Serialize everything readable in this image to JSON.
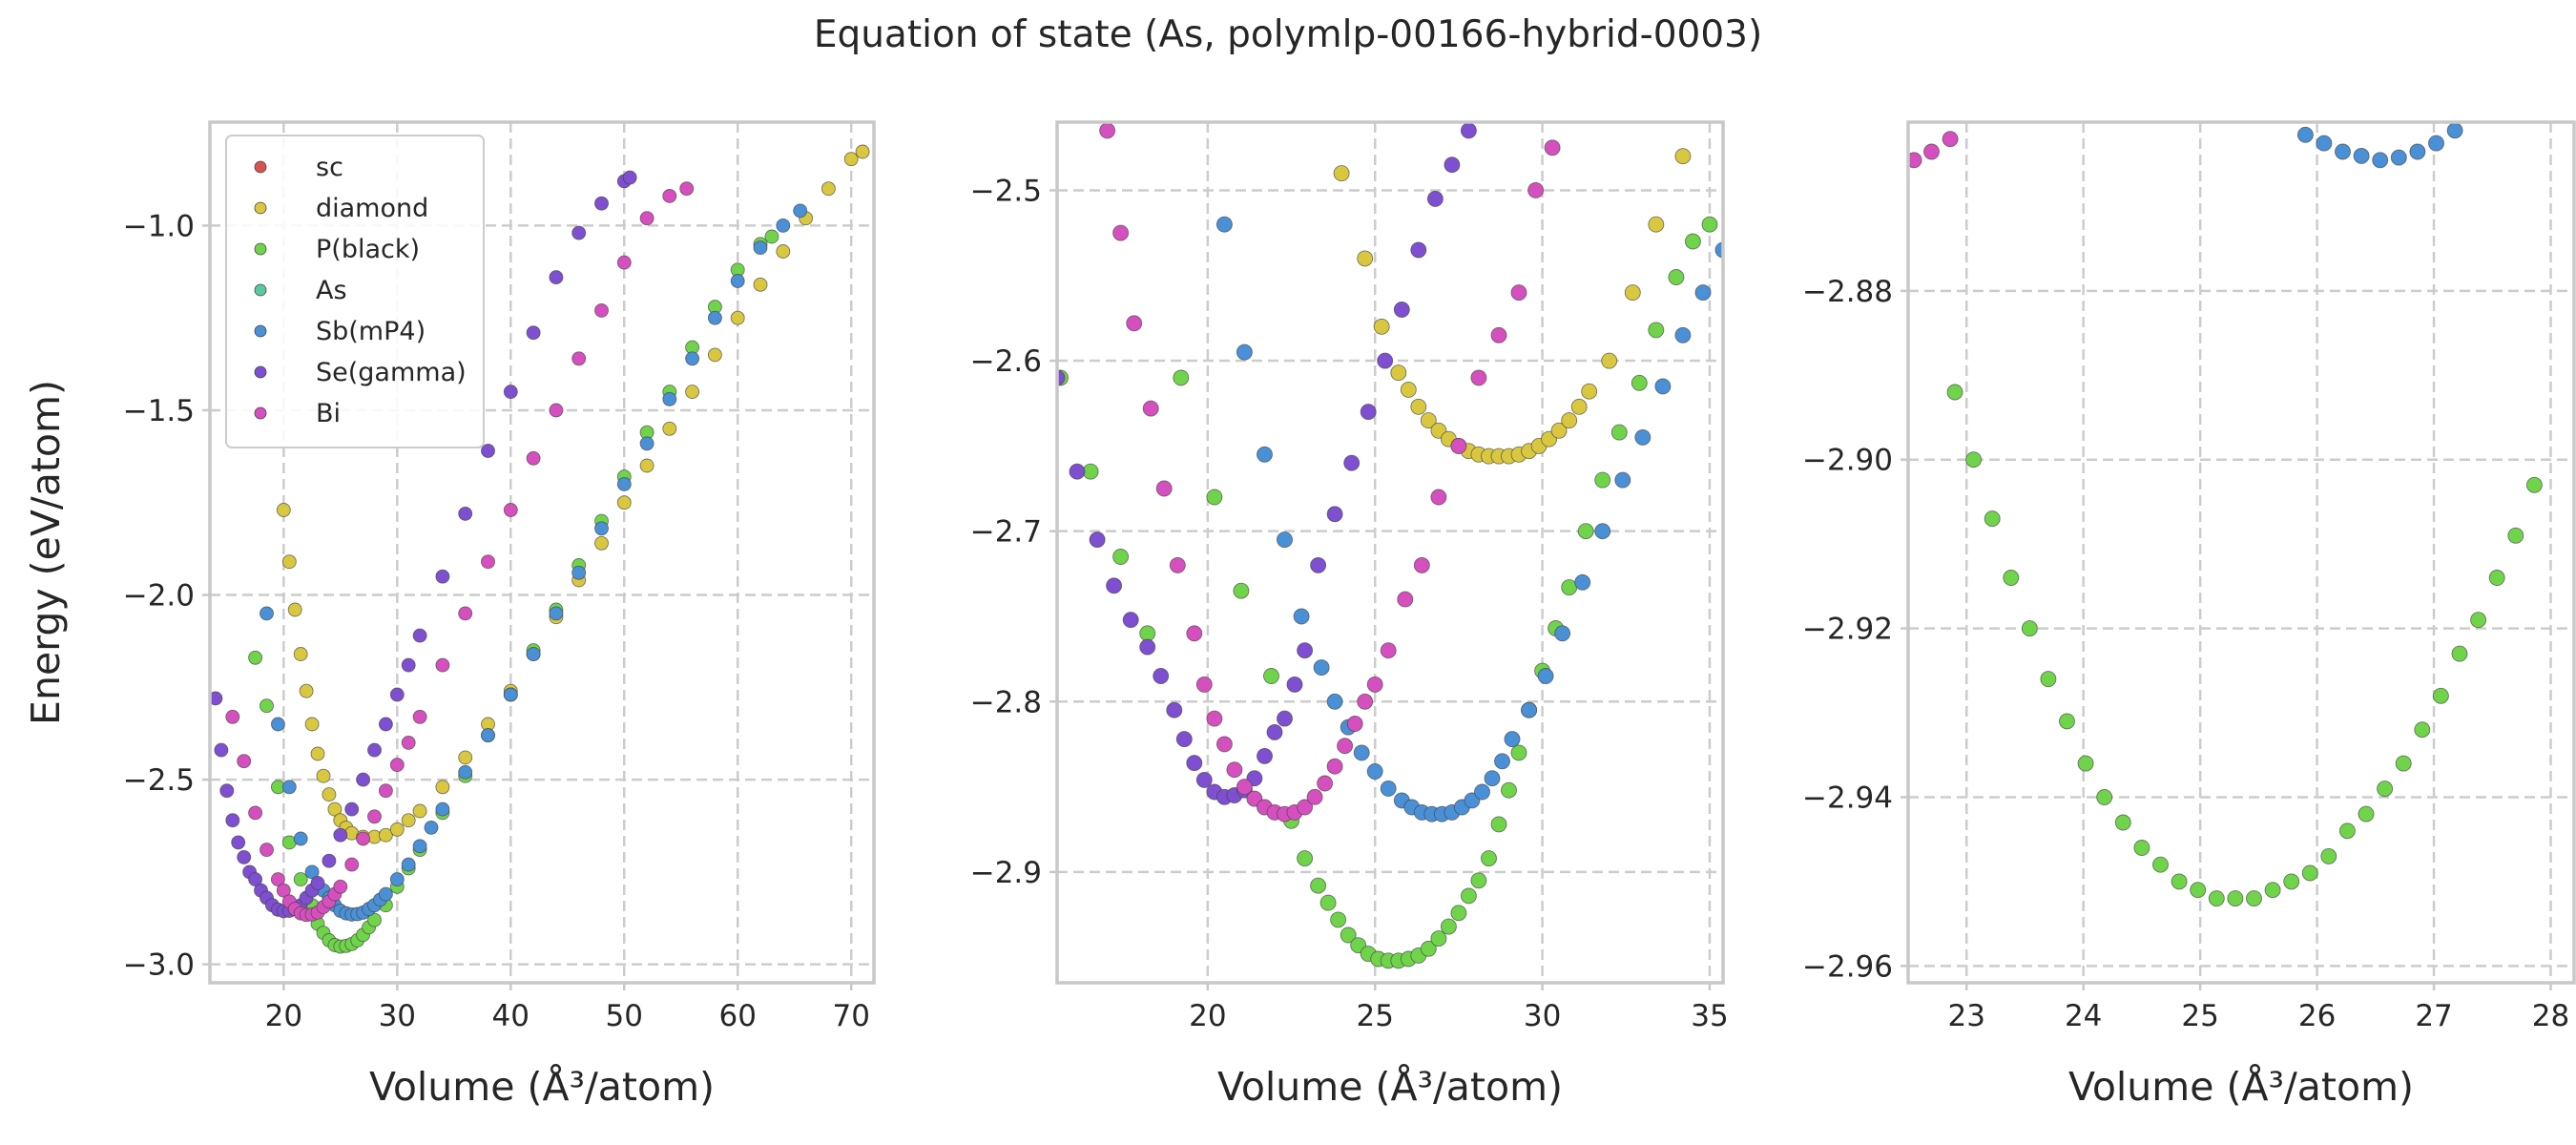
{
  "figure_title": "Equation of state (As, polymlp-00166-hybrid-0003)",
  "colors": {
    "sc": "#d6544d",
    "diamond": "#d9c83f",
    "P(black)": "#6fd44a",
    "As": "#59c99d",
    "Sb(mP4)": "#4a90d6",
    "Se(gamma)": "#7e4fd0",
    "Bi": "#d64fbe"
  },
  "chart_data": [
    {
      "type": "scatter",
      "title": "",
      "xlabel": "Volume (Å³/atom)",
      "ylabel": "Energy (eV/atom)",
      "xlim": [
        13.5,
        72
      ],
      "ylim": [
        -3.05,
        -0.72
      ],
      "xticks": [
        20,
        30,
        40,
        50,
        60,
        70
      ],
      "yticks": [
        -3.0,
        -2.5,
        -2.0,
        -1.5,
        -1.0
      ],
      "ytick_labels": [
        "−3.0",
        "−2.5",
        "−2.0",
        "−1.5",
        "−1.0"
      ],
      "grid": true,
      "legend": {
        "placement": "top-left",
        "entries": [
          "sc",
          "diamond",
          "P(black)",
          "As",
          "Sb(mP4)",
          "Se(gamma)",
          "Bi"
        ]
      },
      "series": [
        {
          "name": "sc",
          "x": [],
          "y": []
        },
        {
          "name": "diamond",
          "x": [
            20.0,
            20.5,
            21.0,
            21.5,
            22.0,
            22.5,
            23.0,
            23.5,
            24.0,
            24.5,
            25.0,
            25.5,
            26.0,
            27.0,
            28.0,
            29.0,
            30.0,
            31.0,
            32.0,
            34.0,
            36.0,
            38.0,
            40.0,
            42.0,
            44.0,
            46.0,
            48.0,
            50.0,
            52.0,
            54.0,
            56.0,
            58.0,
            60.0,
            62.0,
            64.0,
            66.0,
            68.0,
            70.0,
            71.0
          ],
          "y": [
            -1.77,
            -1.91,
            -2.04,
            -2.16,
            -2.26,
            -2.35,
            -2.43,
            -2.49,
            -2.54,
            -2.58,
            -2.61,
            -2.63,
            -2.645,
            -2.655,
            -2.655,
            -2.65,
            -2.635,
            -2.61,
            -2.585,
            -2.52,
            -2.44,
            -2.35,
            -2.26,
            -2.16,
            -2.06,
            -1.96,
            -1.86,
            -1.75,
            -1.65,
            -1.55,
            -1.45,
            -1.35,
            -1.25,
            -1.16,
            -1.07,
            -0.98,
            -0.9,
            -0.82,
            -0.8
          ]
        },
        {
          "name": "P(black)",
          "x": [
            17.5,
            18.5,
            19.5,
            20.5,
            21.5,
            22.5,
            23.0,
            23.5,
            24.0,
            24.5,
            25.0,
            25.5,
            26.0,
            26.5,
            27.0,
            27.5,
            28.0,
            29.0,
            30.0,
            31.0,
            32.0,
            34.0,
            36.0,
            38.0,
            40.0,
            42.0,
            44.0,
            46.0,
            48.0,
            50.0,
            52.0,
            54.0,
            56.0,
            58.0,
            60.0,
            62.0,
            63.0
          ],
          "y": [
            -2.17,
            -2.3,
            -2.52,
            -2.67,
            -2.77,
            -2.84,
            -2.89,
            -2.915,
            -2.935,
            -2.948,
            -2.952,
            -2.95,
            -2.945,
            -2.935,
            -2.92,
            -2.9,
            -2.88,
            -2.84,
            -2.79,
            -2.74,
            -2.69,
            -2.59,
            -2.49,
            -2.38,
            -2.27,
            -2.15,
            -2.04,
            -1.92,
            -1.8,
            -1.68,
            -1.56,
            -1.45,
            -1.33,
            -1.22,
            -1.12,
            -1.05,
            -1.03
          ]
        },
        {
          "name": "As",
          "x": [],
          "y": []
        },
        {
          "name": "Sb(mP4)",
          "x": [
            18.5,
            19.5,
            20.5,
            21.5,
            22.5,
            23.5,
            24.0,
            24.5,
            25.0,
            25.5,
            26.0,
            26.5,
            27.0,
            27.5,
            28.0,
            28.5,
            29.0,
            30.0,
            31.0,
            32.0,
            33.0,
            34.0,
            36.0,
            38.0,
            40.0,
            42.0,
            44.0,
            46.0,
            48.0,
            50.0,
            52.0,
            54.0,
            56.0,
            58.0,
            60.0,
            62.0,
            64.0,
            65.5
          ],
          "y": [
            -2.05,
            -2.35,
            -2.52,
            -2.66,
            -2.75,
            -2.8,
            -2.82,
            -2.84,
            -2.855,
            -2.862,
            -2.865,
            -2.864,
            -2.86,
            -2.85,
            -2.84,
            -2.825,
            -2.81,
            -2.77,
            -2.73,
            -2.68,
            -2.63,
            -2.58,
            -2.48,
            -2.38,
            -2.27,
            -2.16,
            -2.05,
            -1.94,
            -1.82,
            -1.7,
            -1.59,
            -1.47,
            -1.36,
            -1.25,
            -1.15,
            -1.06,
            -1.0,
            -0.96
          ]
        },
        {
          "name": "Se(gamma)",
          "x": [
            14.0,
            14.5,
            15.0,
            15.5,
            16.0,
            16.5,
            17.0,
            17.5,
            18.0,
            18.5,
            19.0,
            19.5,
            20.0,
            20.5,
            21.0,
            21.5,
            22.0,
            22.5,
            23.0,
            24.0,
            25.0,
            26.0,
            27.0,
            28.0,
            29.0,
            30.0,
            31.0,
            32.0,
            34.0,
            36.0,
            38.0,
            40.0,
            42.0,
            44.0,
            46.0,
            48.0,
            50.0,
            50.5
          ],
          "y": [
            -2.28,
            -2.42,
            -2.53,
            -2.61,
            -2.67,
            -2.71,
            -2.75,
            -2.77,
            -2.8,
            -2.82,
            -2.84,
            -2.852,
            -2.856,
            -2.855,
            -2.85,
            -2.84,
            -2.82,
            -2.8,
            -2.78,
            -2.72,
            -2.65,
            -2.58,
            -2.5,
            -2.42,
            -2.35,
            -2.27,
            -2.19,
            -2.11,
            -1.95,
            -1.78,
            -1.61,
            -1.45,
            -1.29,
            -1.14,
            -1.02,
            -0.94,
            -0.88,
            -0.87
          ]
        },
        {
          "name": "Bi",
          "x": [
            15.5,
            16.5,
            17.5,
            18.5,
            19.5,
            20.0,
            20.5,
            21.0,
            21.5,
            22.0,
            22.5,
            23.0,
            23.5,
            24.0,
            24.5,
            25.0,
            26.0,
            27.0,
            28.0,
            29.0,
            30.0,
            31.0,
            32.0,
            34.0,
            36.0,
            38.0,
            40.0,
            42.0,
            44.0,
            46.0,
            48.0,
            50.0,
            52.0,
            54.0,
            55.5
          ],
          "y": [
            -2.33,
            -2.45,
            -2.59,
            -2.69,
            -2.77,
            -2.8,
            -2.83,
            -2.85,
            -2.862,
            -2.866,
            -2.865,
            -2.86,
            -2.845,
            -2.83,
            -2.81,
            -2.79,
            -2.73,
            -2.66,
            -2.6,
            -2.53,
            -2.46,
            -2.4,
            -2.33,
            -2.19,
            -2.05,
            -1.91,
            -1.77,
            -1.63,
            -1.5,
            -1.36,
            -1.23,
            -1.1,
            -0.98,
            -0.92,
            -0.9
          ]
        }
      ]
    },
    {
      "type": "scatter",
      "title": "",
      "xlabel": "Volume (Å³/atom)",
      "ylabel": "",
      "xlim": [
        15.5,
        35.4
      ],
      "ylim": [
        -2.965,
        -2.46
      ],
      "xticks": [
        20,
        25,
        30,
        35
      ],
      "yticks": [
        -2.9,
        -2.8,
        -2.7,
        -2.6,
        -2.5
      ],
      "ytick_labels": [
        "−2.9",
        "−2.8",
        "−2.7",
        "−2.6",
        "−2.5"
      ],
      "grid": true,
      "series": [
        {
          "name": "diamond",
          "x": [
            24.0,
            24.7,
            25.2,
            25.7,
            26.0,
            26.3,
            26.6,
            26.9,
            27.2,
            27.5,
            27.8,
            28.1,
            28.4,
            28.7,
            29.0,
            29.3,
            29.6,
            29.9,
            30.2,
            30.5,
            30.8,
            31.1,
            31.4,
            32.0,
            32.7,
            33.4,
            34.2,
            34.9
          ],
          "y": [
            -2.49,
            -2.54,
            -2.58,
            -2.607,
            -2.617,
            -2.627,
            -2.635,
            -2.641,
            -2.646,
            -2.65,
            -2.653,
            -2.655,
            -2.656,
            -2.656,
            -2.656,
            -2.655,
            -2.653,
            -2.65,
            -2.646,
            -2.641,
            -2.635,
            -2.627,
            -2.618,
            -2.6,
            -2.56,
            -2.52,
            -2.48,
            -2.45
          ]
        },
        {
          "name": "P(black)",
          "x": [
            15.6,
            16.5,
            17.4,
            18.2,
            19.2,
            20.2,
            21.0,
            21.9,
            22.5,
            22.9,
            23.3,
            23.6,
            23.9,
            24.2,
            24.5,
            24.8,
            25.1,
            25.4,
            25.7,
            26.0,
            26.3,
            26.6,
            26.9,
            27.2,
            27.5,
            27.8,
            28.1,
            28.4,
            28.7,
            29.0,
            29.3,
            29.6,
            30.0,
            30.4,
            30.8,
            31.3,
            31.8,
            32.3,
            32.9,
            33.4,
            34.0,
            34.5,
            35.0
          ],
          "y": [
            -2.61,
            -2.665,
            -2.715,
            -2.76,
            -2.61,
            -2.68,
            -2.735,
            -2.785,
            -2.87,
            -2.892,
            -2.908,
            -2.918,
            -2.928,
            -2.937,
            -2.943,
            -2.948,
            -2.951,
            -2.952,
            -2.952,
            -2.951,
            -2.949,
            -2.945,
            -2.939,
            -2.932,
            -2.924,
            -2.914,
            -2.905,
            -2.892,
            -2.872,
            -2.852,
            -2.83,
            -2.805,
            -2.782,
            -2.757,
            -2.733,
            -2.7,
            -2.67,
            -2.642,
            -2.613,
            -2.582,
            -2.551,
            -2.53,
            -2.52
          ]
        },
        {
          "name": "Sb(mP4)",
          "x": [
            20.5,
            21.1,
            21.7,
            22.3,
            22.8,
            23.4,
            23.8,
            24.2,
            24.6,
            25.0,
            25.4,
            25.8,
            26.1,
            26.4,
            26.7,
            27.0,
            27.3,
            27.6,
            27.9,
            28.2,
            28.5,
            28.8,
            29.1,
            29.6,
            30.1,
            30.6,
            31.2,
            31.8,
            32.4,
            33.0,
            33.6,
            34.2,
            34.8,
            35.4
          ],
          "y": [
            -2.52,
            -2.595,
            -2.655,
            -2.705,
            -2.75,
            -2.78,
            -2.8,
            -2.815,
            -2.83,
            -2.841,
            -2.851,
            -2.858,
            -2.862,
            -2.865,
            -2.866,
            -2.866,
            -2.865,
            -2.862,
            -2.858,
            -2.853,
            -2.845,
            -2.835,
            -2.822,
            -2.805,
            -2.785,
            -2.76,
            -2.73,
            -2.7,
            -2.67,
            -2.645,
            -2.615,
            -2.585,
            -2.56,
            -2.535
          ]
        },
        {
          "name": "Se(gamma)",
          "x": [
            15.5,
            16.1,
            16.7,
            17.2,
            17.7,
            18.2,
            18.6,
            19.0,
            19.3,
            19.6,
            19.9,
            20.2,
            20.5,
            20.8,
            21.1,
            21.4,
            21.7,
            22.0,
            22.3,
            22.6,
            22.9,
            23.3,
            23.8,
            24.3,
            24.8,
            25.3,
            25.8,
            26.3,
            26.8,
            27.3,
            27.8
          ],
          "y": [
            -2.61,
            -2.665,
            -2.705,
            -2.732,
            -2.752,
            -2.768,
            -2.785,
            -2.805,
            -2.822,
            -2.836,
            -2.846,
            -2.853,
            -2.856,
            -2.855,
            -2.852,
            -2.845,
            -2.832,
            -2.818,
            -2.81,
            -2.79,
            -2.77,
            -2.72,
            -2.69,
            -2.66,
            -2.63,
            -2.6,
            -2.57,
            -2.535,
            -2.505,
            -2.485,
            -2.465
          ]
        },
        {
          "name": "Bi",
          "x": [
            17.0,
            17.4,
            17.8,
            18.3,
            18.7,
            19.1,
            19.6,
            19.9,
            20.2,
            20.5,
            20.8,
            21.1,
            21.4,
            21.7,
            22.0,
            22.3,
            22.6,
            22.9,
            23.2,
            23.5,
            23.8,
            24.1,
            24.4,
            24.7,
            25.0,
            25.4,
            25.9,
            26.4,
            26.9,
            27.5,
            28.1,
            28.7,
            29.3,
            29.8,
            30.3
          ],
          "y": [
            -2.465,
            -2.525,
            -2.578,
            -2.628,
            -2.675,
            -2.72,
            -2.76,
            -2.79,
            -2.81,
            -2.825,
            -2.84,
            -2.85,
            -2.857,
            -2.862,
            -2.865,
            -2.866,
            -2.865,
            -2.862,
            -2.856,
            -2.848,
            -2.838,
            -2.826,
            -2.813,
            -2.8,
            -2.79,
            -2.77,
            -2.74,
            -2.72,
            -2.68,
            -2.65,
            -2.61,
            -2.585,
            -2.56,
            -2.5,
            -2.475
          ]
        }
      ]
    },
    {
      "type": "scatter",
      "title": "",
      "xlabel": "Volume (Å³/atom)",
      "ylabel": "",
      "xlim": [
        22.5,
        28.2
      ],
      "ylim": [
        -2.962,
        -2.86
      ],
      "xticks": [
        23,
        24,
        25,
        26,
        27,
        28
      ],
      "yticks": [
        -2.96,
        -2.94,
        -2.92,
        -2.9,
        -2.88
      ],
      "ytick_labels": [
        "−2.96",
        "−2.94",
        "−2.92",
        "−2.90",
        "−2.88"
      ],
      "grid": true,
      "series": [
        {
          "name": "P(black)",
          "x": [
            22.9,
            23.06,
            23.22,
            23.38,
            23.54,
            23.7,
            23.86,
            24.02,
            24.18,
            24.34,
            24.5,
            24.66,
            24.82,
            24.98,
            25.14,
            25.3,
            25.46,
            25.62,
            25.78,
            25.94,
            26.1,
            26.26,
            26.42,
            26.58,
            26.74,
            26.9,
            27.06,
            27.22,
            27.38,
            27.54,
            27.7,
            27.86
          ],
          "y": [
            -2.892,
            -2.9,
            -2.907,
            -2.914,
            -2.92,
            -2.926,
            -2.931,
            -2.936,
            -2.94,
            -2.943,
            -2.946,
            -2.948,
            -2.95,
            -2.951,
            -2.952,
            -2.952,
            -2.952,
            -2.951,
            -2.95,
            -2.949,
            -2.947,
            -2.944,
            -2.942,
            -2.939,
            -2.936,
            -2.932,
            -2.928,
            -2.923,
            -2.919,
            -2.914,
            -2.909,
            -2.903
          ]
        },
        {
          "name": "Sb(mP4)",
          "x": [
            25.9,
            26.06,
            26.22,
            26.38,
            26.54,
            26.7,
            26.86,
            27.02,
            27.18
          ],
          "y": [
            -2.8615,
            -2.8625,
            -2.8635,
            -2.864,
            -2.8645,
            -2.8642,
            -2.8635,
            -2.8625,
            -2.861
          ]
        },
        {
          "name": "Bi",
          "x": [
            22.55,
            22.7,
            22.86
          ],
          "y": [
            -2.8645,
            -2.8635,
            -2.862
          ]
        }
      ]
    }
  ]
}
